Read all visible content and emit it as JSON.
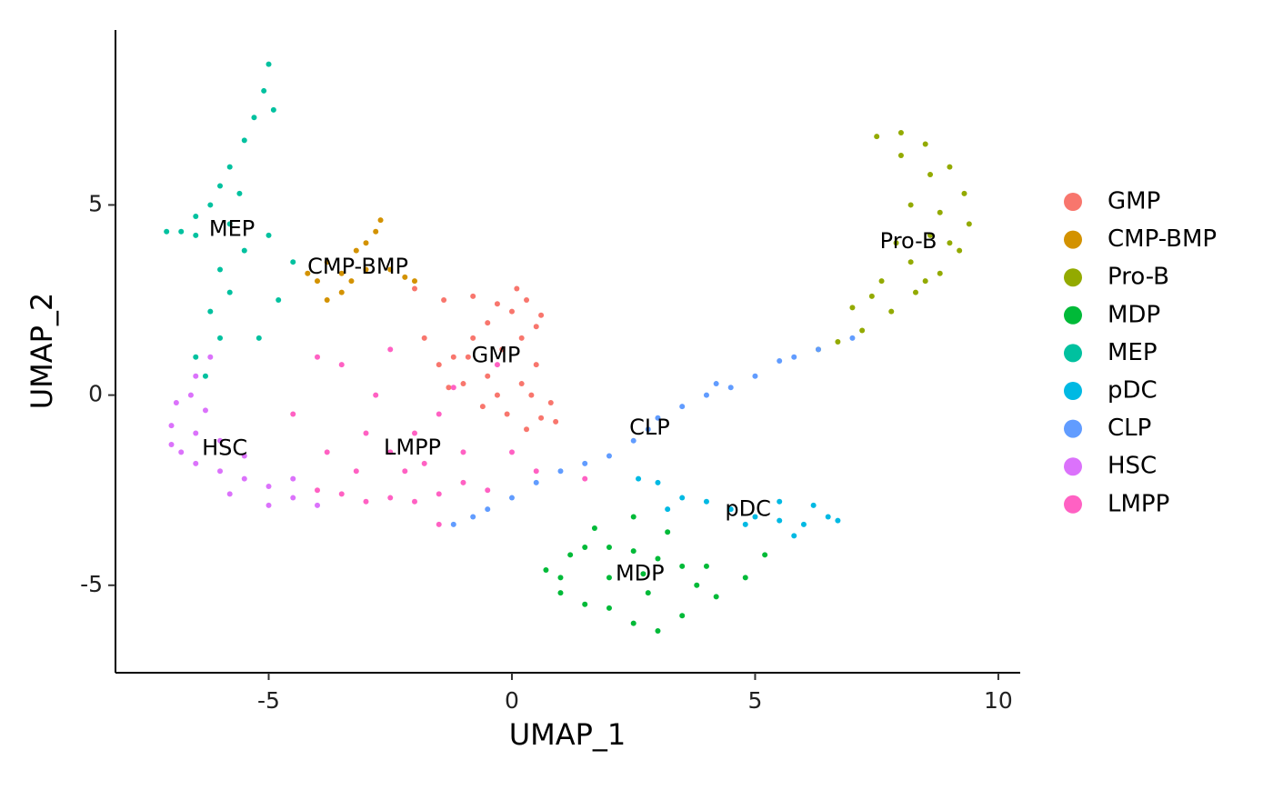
{
  "chart_data": {
    "type": "scatter",
    "xlabel": "UMAP_1",
    "ylabel": "UMAP_2",
    "xlim": [
      -8.15,
      10.45
    ],
    "ylim": [
      -7.3,
      9.6
    ],
    "xticks": [
      -5,
      0,
      5,
      10
    ],
    "yticks": [
      -5,
      0,
      5
    ],
    "series": [
      {
        "name": "GMP",
        "color": "#F8766D",
        "x": [
          0,
          0.3,
          -0.3,
          0.5,
          -0.5,
          0.2,
          -0.2,
          0.6,
          -0.8,
          -1.2,
          -1.5,
          -1.0,
          -0.5,
          -0.3,
          0.2,
          0.5,
          0.8,
          0.6,
          0.3,
          -0.1,
          -0.6,
          -1.3,
          -1.8,
          -1.4,
          -0.8,
          0.9,
          0.4,
          -0.9,
          0.1,
          -2.0
        ],
        "y": [
          2.2,
          2.5,
          2.4,
          1.8,
          1.9,
          1.5,
          1.2,
          2.1,
          1.5,
          1.0,
          0.8,
          0.3,
          0.5,
          0.0,
          0.3,
          0.8,
          -0.2,
          -0.6,
          -0.9,
          -0.5,
          -0.3,
          0.2,
          1.5,
          2.5,
          2.6,
          -0.7,
          0.0,
          1.0,
          2.8,
          2.8
        ]
      },
      {
        "name": "CMP-BMP",
        "color": "#D39200",
        "x": [
          -3.8,
          -3.5,
          -3.2,
          -3.0,
          -2.8,
          -2.7,
          -3.5,
          -4.0,
          -3.8,
          -3.3,
          -2.5,
          -2.2,
          -2.0,
          -3.0,
          -4.2
        ],
        "y": [
          3.5,
          3.2,
          3.8,
          4.0,
          4.3,
          4.6,
          2.7,
          3.0,
          2.5,
          3.0,
          3.3,
          3.1,
          3.0,
          3.3,
          3.2
        ]
      },
      {
        "name": "Pro-B",
        "color": "#93AA00",
        "x": [
          7.5,
          8,
          8.5,
          9,
          9.3,
          9.4,
          9.2,
          8.8,
          8.3,
          7.8,
          7.2,
          6.7,
          6.3,
          8,
          8.6,
          8.8,
          8.6,
          8.2,
          7.6,
          7.0,
          8.2,
          7.9,
          7.4,
          9.0,
          8.5
        ],
        "y": [
          6.8,
          6.9,
          6.6,
          6,
          5.3,
          4.5,
          3.8,
          3.2,
          2.7,
          2.2,
          1.7,
          1.4,
          1.2,
          6.3,
          5.8,
          4.8,
          4.2,
          3.5,
          3.0,
          2.3,
          5.0,
          4.0,
          2.6,
          4.0,
          3.0
        ]
      },
      {
        "name": "MDP",
        "color": "#00BA38",
        "x": [
          1,
          0.7,
          1.2,
          1.5,
          2,
          2.5,
          3,
          3.5,
          3.8,
          4.2,
          4.8,
          5.2,
          3.5,
          3,
          2.5,
          2,
          1.5,
          1,
          2,
          2.8,
          1.7,
          2.5,
          3.2,
          4,
          2.7
        ],
        "y": [
          -4.8,
          -4.6,
          -4.2,
          -4.0,
          -4.0,
          -4.1,
          -4.3,
          -4.5,
          -5,
          -5.3,
          -4.8,
          -4.2,
          -5.8,
          -6.2,
          -6.0,
          -5.6,
          -5.5,
          -5.2,
          -4.8,
          -5.2,
          -3.5,
          -3.2,
          -3.6,
          -4.5,
          -4.7
        ]
      },
      {
        "name": "MEP",
        "color": "#00C19F",
        "x": [
          -5.0,
          -5.1,
          -5.3,
          -5.5,
          -5.8,
          -6,
          -6.2,
          -6.5,
          -6.8,
          -7.1,
          -6.5,
          -5.8,
          -5.5,
          -6.0,
          -5.8,
          -6.2,
          -6.0,
          -6.5,
          -5.2,
          -4.8,
          -4.5,
          -5.0,
          -6.3,
          -4.9,
          -5.6
        ],
        "y": [
          8.7,
          8.0,
          7.3,
          6.7,
          6.0,
          5.5,
          5.0,
          4.7,
          4.3,
          4.3,
          4.2,
          4.5,
          3.8,
          3.3,
          2.7,
          2.2,
          1.5,
          1.0,
          1.5,
          2.5,
          3.5,
          4.2,
          0.5,
          7.5,
          5.3
        ]
      },
      {
        "name": "pDC",
        "color": "#00B9E3",
        "x": [
          3.0,
          3.5,
          4,
          4.5,
          5,
          5.5,
          6,
          6.5,
          6.7,
          6.2,
          5.5,
          4.8,
          2.6,
          3.2,
          5.8
        ],
        "y": [
          -2.3,
          -2.7,
          -2.8,
          -3,
          -3.2,
          -3.3,
          -3.4,
          -3.2,
          -3.3,
          -2.9,
          -2.8,
          -3.4,
          -2.2,
          -3.0,
          -3.7
        ]
      },
      {
        "name": "CLP",
        "color": "#619CFF",
        "x": [
          7,
          6.3,
          5.5,
          5,
          4.5,
          4,
          3.5,
          3,
          2.5,
          2,
          1.5,
          1,
          0.5,
          0,
          -0.5,
          -1.2,
          4.2,
          5.8,
          2.8,
          -0.8
        ],
        "y": [
          1.5,
          1.2,
          0.9,
          0.5,
          0.2,
          0,
          -0.3,
          -0.6,
          -1.2,
          -1.6,
          -1.8,
          -2.0,
          -2.3,
          -2.7,
          -3.0,
          -3.4,
          0.3,
          1.0,
          -0.9,
          -3.2
        ]
      },
      {
        "name": "HSC",
        "color": "#DB72FB",
        "x": [
          -7,
          -6.8,
          -6.5,
          -6,
          -5.5,
          -5,
          -4.5,
          -4,
          -6.9,
          -6.5,
          -6.2,
          -6.5,
          -6,
          -5.5,
          -5,
          -6.3,
          -7,
          -5.8,
          -4.5,
          -6.6
        ],
        "y": [
          -0.8,
          -1.5,
          -1.8,
          -2,
          -2.2,
          -2.4,
          -2.7,
          -2.9,
          -0.2,
          0.5,
          1,
          -1,
          -1.2,
          -1.6,
          -2.9,
          -0.4,
          -1.3,
          -2.6,
          -2.2,
          0
        ]
      },
      {
        "name": "LMPP",
        "color": "#FF61C3",
        "x": [
          -4,
          -3.5,
          -3,
          -2.5,
          -2,
          -1.5,
          -1,
          -2.5,
          -2,
          -1.5,
          -1.2,
          -2.8,
          -3.5,
          -4,
          -3,
          -1,
          0,
          0.5,
          -0.5,
          -2.2,
          -3.2,
          -1.8,
          -4.5,
          -2.5,
          -1.5,
          1.5,
          -0.3,
          -3.8
        ],
        "y": [
          -2.5,
          -2.6,
          -2.8,
          -2.7,
          -2.8,
          -2.6,
          -2.3,
          -1.5,
          -1,
          -0.5,
          0.2,
          0,
          0.8,
          1.0,
          -1,
          -1.5,
          -1.5,
          -2.0,
          -2.5,
          -2,
          -2,
          -1.8,
          -0.5,
          1.2,
          -3.4,
          -2.2,
          0.8,
          -1.5
        ]
      }
    ]
  }
}
